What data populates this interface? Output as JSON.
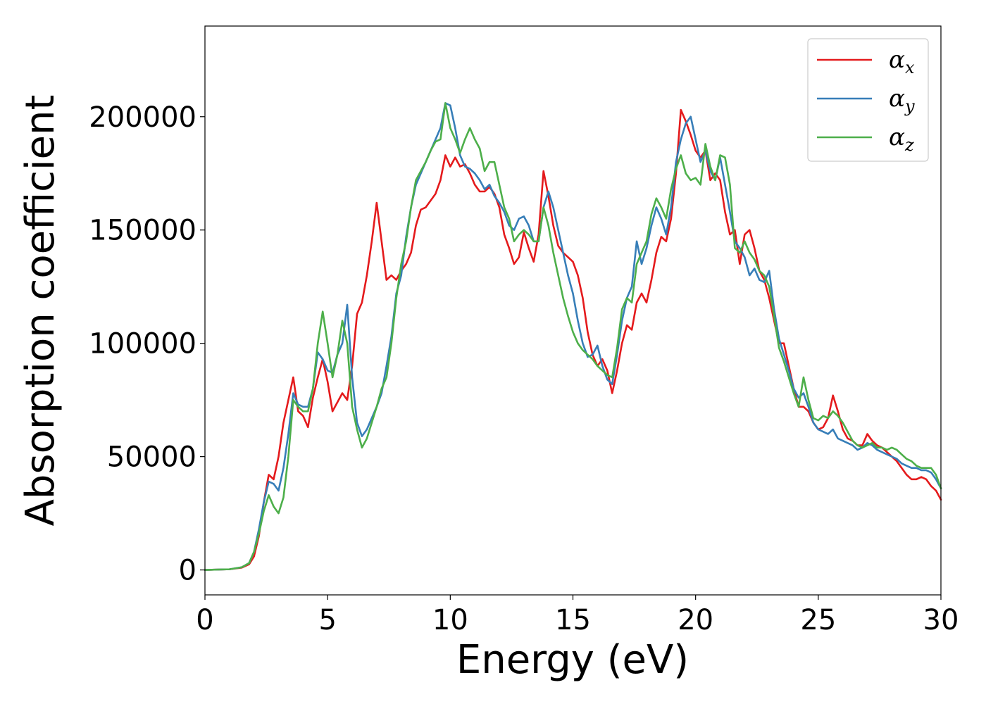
{
  "chart_data": {
    "type": "line",
    "title": "",
    "xlabel": "Energy (eV)",
    "ylabel": "Absorption coefficient",
    "xlim": [
      0,
      30
    ],
    "ylim": [
      -11000,
      240000
    ],
    "xticks": [
      0,
      5,
      10,
      15,
      20,
      25,
      30
    ],
    "xtick_labels": [
      "0",
      "5",
      "10",
      "15",
      "20",
      "25",
      "30"
    ],
    "yticks": [
      0,
      50000,
      100000,
      150000,
      200000
    ],
    "ytick_labels": [
      "0",
      "50000",
      "100000",
      "150000",
      "200000"
    ],
    "grid": false,
    "legend_position": "top-right",
    "series": [
      {
        "name": "α_x",
        "label_main": "α",
        "label_sub": "x",
        "color": "#e41a1c",
        "x": [
          0,
          1.0,
          1.5,
          1.8,
          2.0,
          2.2,
          2.4,
          2.6,
          2.8,
          3.0,
          3.2,
          3.4,
          3.6,
          3.8,
          4.0,
          4.2,
          4.4,
          4.6,
          4.8,
          5.0,
          5.2,
          5.4,
          5.6,
          5.8,
          6.0,
          6.2,
          6.4,
          6.6,
          6.8,
          7.0,
          7.2,
          7.4,
          7.6,
          7.8,
          8.0,
          8.2,
          8.4,
          8.6,
          8.8,
          9.0,
          9.2,
          9.4,
          9.6,
          9.8,
          10.0,
          10.2,
          10.4,
          10.6,
          10.8,
          11.0,
          11.2,
          11.4,
          11.6,
          11.8,
          12.0,
          12.2,
          12.4,
          12.6,
          12.8,
          13.0,
          13.2,
          13.4,
          13.6,
          13.8,
          14.0,
          14.2,
          14.4,
          14.6,
          14.8,
          15.0,
          15.2,
          15.4,
          15.6,
          15.8,
          16.0,
          16.2,
          16.4,
          16.6,
          16.8,
          17.0,
          17.2,
          17.4,
          17.6,
          17.8,
          18.0,
          18.2,
          18.4,
          18.6,
          18.8,
          19.0,
          19.2,
          19.4,
          19.6,
          19.8,
          20.0,
          20.2,
          20.4,
          20.6,
          20.8,
          21.0,
          21.2,
          21.4,
          21.6,
          21.8,
          22.0,
          22.2,
          22.4,
          22.6,
          22.8,
          23.0,
          23.2,
          23.4,
          23.6,
          23.8,
          24.0,
          24.2,
          24.4,
          24.6,
          24.8,
          25.0,
          25.2,
          25.4,
          25.6,
          25.8,
          26.0,
          26.2,
          26.4,
          26.6,
          26.8,
          27.0,
          27.2,
          27.4,
          27.6,
          27.8,
          28.0,
          28.2,
          28.4,
          28.6,
          28.8,
          29.0,
          29.2,
          29.4,
          29.6,
          29.8,
          30.0
        ],
        "y": [
          0,
          300,
          1000,
          2500,
          6000,
          15000,
          30000,
          42000,
          40000,
          50000,
          65000,
          75000,
          85000,
          70000,
          68000,
          63000,
          76000,
          85000,
          93000,
          83000,
          70000,
          74000,
          78000,
          75000,
          90000,
          113000,
          118000,
          130000,
          145000,
          162000,
          145000,
          128000,
          130000,
          128000,
          132000,
          135000,
          140000,
          152000,
          159000,
          160000,
          163000,
          166000,
          172000,
          183000,
          178000,
          182000,
          178000,
          179000,
          175000,
          170000,
          167000,
          167000,
          169000,
          166000,
          160000,
          148000,
          142000,
          135000,
          138000,
          149000,
          142000,
          136000,
          148000,
          176000,
          165000,
          152000,
          143000,
          140000,
          138000,
          136000,
          130000,
          120000,
          105000,
          95000,
          90000,
          93000,
          88000,
          78000,
          88000,
          100000,
          108000,
          106000,
          118000,
          122000,
          118000,
          128000,
          140000,
          147000,
          145000,
          155000,
          175000,
          203000,
          198000,
          192000,
          185000,
          182000,
          185000,
          172000,
          175000,
          172000,
          158000,
          148000,
          150000,
          135000,
          148000,
          150000,
          142000,
          132000,
          128000,
          120000,
          110000,
          100000,
          100000,
          90000,
          80000,
          72000,
          72000,
          70000,
          65000,
          62000,
          63000,
          67000,
          77000,
          70000,
          62000,
          58000,
          57000,
          55000,
          55000,
          60000,
          57000,
          55000,
          54000,
          52000,
          50000,
          48000,
          45000,
          42000,
          40000,
          40000,
          41000,
          40000,
          37000,
          35000,
          31000
        ]
      },
      {
        "name": "α_y",
        "label_main": "α",
        "label_sub": "y",
        "color": "#377eb8",
        "x": [
          0,
          1.0,
          1.5,
          1.8,
          2.0,
          2.2,
          2.4,
          2.6,
          2.8,
          3.0,
          3.2,
          3.4,
          3.6,
          3.8,
          4.0,
          4.2,
          4.4,
          4.6,
          4.8,
          5.0,
          5.2,
          5.4,
          5.6,
          5.8,
          6.0,
          6.2,
          6.4,
          6.6,
          6.8,
          7.0,
          7.2,
          7.4,
          7.6,
          7.8,
          8.0,
          8.2,
          8.4,
          8.6,
          8.8,
          9.0,
          9.2,
          9.4,
          9.6,
          9.8,
          10.0,
          10.2,
          10.4,
          10.6,
          10.8,
          11.0,
          11.2,
          11.4,
          11.6,
          11.8,
          12.0,
          12.2,
          12.4,
          12.6,
          12.8,
          13.0,
          13.2,
          13.4,
          13.6,
          13.8,
          14.0,
          14.2,
          14.4,
          14.6,
          14.8,
          15.0,
          15.2,
          15.4,
          15.6,
          15.8,
          16.0,
          16.2,
          16.4,
          16.6,
          16.8,
          17.0,
          17.2,
          17.4,
          17.6,
          17.8,
          18.0,
          18.2,
          18.4,
          18.6,
          18.8,
          19.0,
          19.2,
          19.4,
          19.6,
          19.8,
          20.0,
          20.2,
          20.4,
          20.6,
          20.8,
          21.0,
          21.2,
          21.4,
          21.6,
          21.8,
          22.0,
          22.2,
          22.4,
          22.6,
          22.8,
          23.0,
          23.2,
          23.4,
          23.6,
          23.8,
          24.0,
          24.2,
          24.4,
          24.6,
          24.8,
          25.0,
          25.2,
          25.4,
          25.6,
          25.8,
          26.0,
          26.2,
          26.4,
          26.6,
          26.8,
          27.0,
          27.2,
          27.4,
          27.6,
          27.8,
          28.0,
          28.2,
          28.4,
          28.6,
          28.8,
          29.0,
          29.2,
          29.4,
          29.6,
          29.8,
          30.0
        ],
        "y": [
          0,
          300,
          1200,
          3000,
          8000,
          18000,
          30000,
          39000,
          38000,
          35000,
          45000,
          60000,
          78000,
          73000,
          72000,
          72000,
          80000,
          96000,
          93000,
          88000,
          87000,
          95000,
          100000,
          117000,
          85000,
          65000,
          59000,
          62000,
          67000,
          72000,
          78000,
          90000,
          103000,
          122000,
          130000,
          147000,
          160000,
          170000,
          175000,
          180000,
          185000,
          190000,
          195000,
          206000,
          205000,
          195000,
          183000,
          178000,
          177000,
          175000,
          172000,
          168000,
          170000,
          165000,
          162000,
          158000,
          152000,
          150000,
          155000,
          156000,
          152000,
          145000,
          145000,
          160000,
          167000,
          160000,
          150000,
          140000,
          130000,
          122000,
          110000,
          100000,
          94000,
          95000,
          99000,
          90000,
          84000,
          82000,
          95000,
          110000,
          120000,
          125000,
          145000,
          135000,
          142000,
          152000,
          160000,
          155000,
          148000,
          160000,
          180000,
          190000,
          197000,
          200000,
          190000,
          180000,
          185000,
          176000,
          172000,
          182000,
          170000,
          158000,
          145000,
          142000,
          138000,
          130000,
          133000,
          128000,
          127000,
          132000,
          115000,
          102000,
          95000,
          88000,
          80000,
          76000,
          78000,
          72000,
          65000,
          62000,
          61000,
          60000,
          62000,
          58000,
          57000,
          56000,
          55000,
          53000,
          54000,
          56000,
          55000,
          53000,
          52000,
          51000,
          50000,
          49000,
          47000,
          46000,
          45000,
          45000,
          44000,
          44000,
          43000,
          40000,
          36000
        ]
      },
      {
        "name": "α_z",
        "label_main": "α",
        "label_sub": "z",
        "color": "#4daf4a",
        "x": [
          0,
          1.0,
          1.5,
          1.8,
          2.0,
          2.2,
          2.4,
          2.6,
          2.8,
          3.0,
          3.2,
          3.4,
          3.6,
          3.8,
          4.0,
          4.2,
          4.4,
          4.6,
          4.8,
          5.0,
          5.2,
          5.4,
          5.6,
          5.8,
          6.0,
          6.2,
          6.4,
          6.6,
          6.8,
          7.0,
          7.2,
          7.4,
          7.6,
          7.8,
          8.0,
          8.2,
          8.4,
          8.6,
          8.8,
          9.0,
          9.2,
          9.4,
          9.6,
          9.8,
          10.0,
          10.2,
          10.4,
          10.6,
          10.8,
          11.0,
          11.2,
          11.4,
          11.6,
          11.8,
          12.0,
          12.2,
          12.4,
          12.6,
          12.8,
          13.0,
          13.2,
          13.4,
          13.6,
          13.8,
          14.0,
          14.2,
          14.4,
          14.6,
          14.8,
          15.0,
          15.2,
          15.4,
          15.6,
          15.8,
          16.0,
          16.2,
          16.4,
          16.6,
          16.8,
          17.0,
          17.2,
          17.4,
          17.6,
          17.8,
          18.0,
          18.2,
          18.4,
          18.6,
          18.8,
          19.0,
          19.2,
          19.4,
          19.6,
          19.8,
          20.0,
          20.2,
          20.4,
          20.6,
          20.8,
          21.0,
          21.2,
          21.4,
          21.6,
          21.8,
          22.0,
          22.2,
          22.4,
          22.6,
          22.8,
          23.0,
          23.2,
          23.4,
          23.6,
          23.8,
          24.0,
          24.2,
          24.4,
          24.6,
          24.8,
          25.0,
          25.2,
          25.4,
          25.6,
          25.8,
          26.0,
          26.2,
          26.4,
          26.6,
          26.8,
          27.0,
          27.2,
          27.4,
          27.6,
          27.8,
          28.0,
          28.2,
          28.4,
          28.6,
          28.8,
          29.0,
          29.2,
          29.4,
          29.6,
          29.8,
          30.0
        ],
        "y": [
          0,
          300,
          1200,
          3000,
          8000,
          16000,
          26000,
          33000,
          28000,
          25000,
          32000,
          50000,
          75000,
          72000,
          70000,
          70000,
          80000,
          100000,
          114000,
          100000,
          85000,
          95000,
          110000,
          100000,
          72000,
          62000,
          54000,
          58000,
          65000,
          72000,
          80000,
          85000,
          100000,
          120000,
          135000,
          145000,
          160000,
          172000,
          176000,
          180000,
          185000,
          189000,
          190000,
          206000,
          195000,
          190000,
          184000,
          190000,
          195000,
          190000,
          186000,
          176000,
          180000,
          180000,
          170000,
          160000,
          155000,
          145000,
          148000,
          150000,
          148000,
          145000,
          145000,
          160000,
          152000,
          140000,
          130000,
          120000,
          112000,
          105000,
          100000,
          97000,
          95000,
          93000,
          90000,
          88000,
          86000,
          85000,
          98000,
          115000,
          120000,
          118000,
          135000,
          140000,
          145000,
          157000,
          164000,
          160000,
          155000,
          168000,
          177000,
          183000,
          175000,
          172000,
          173000,
          170000,
          188000,
          178000,
          172000,
          183000,
          182000,
          170000,
          142000,
          140000,
          145000,
          140000,
          137000,
          132000,
          130000,
          125000,
          112000,
          98000,
          92000,
          85000,
          78000,
          72000,
          85000,
          75000,
          67000,
          66000,
          68000,
          67000,
          70000,
          68000,
          65000,
          61000,
          57000,
          55000,
          54000,
          55000,
          56000,
          54000,
          54000,
          53000,
          54000,
          53000,
          51000,
          49000,
          48000,
          46000,
          45000,
          45000,
          45000,
          42000,
          36000
        ]
      }
    ]
  }
}
